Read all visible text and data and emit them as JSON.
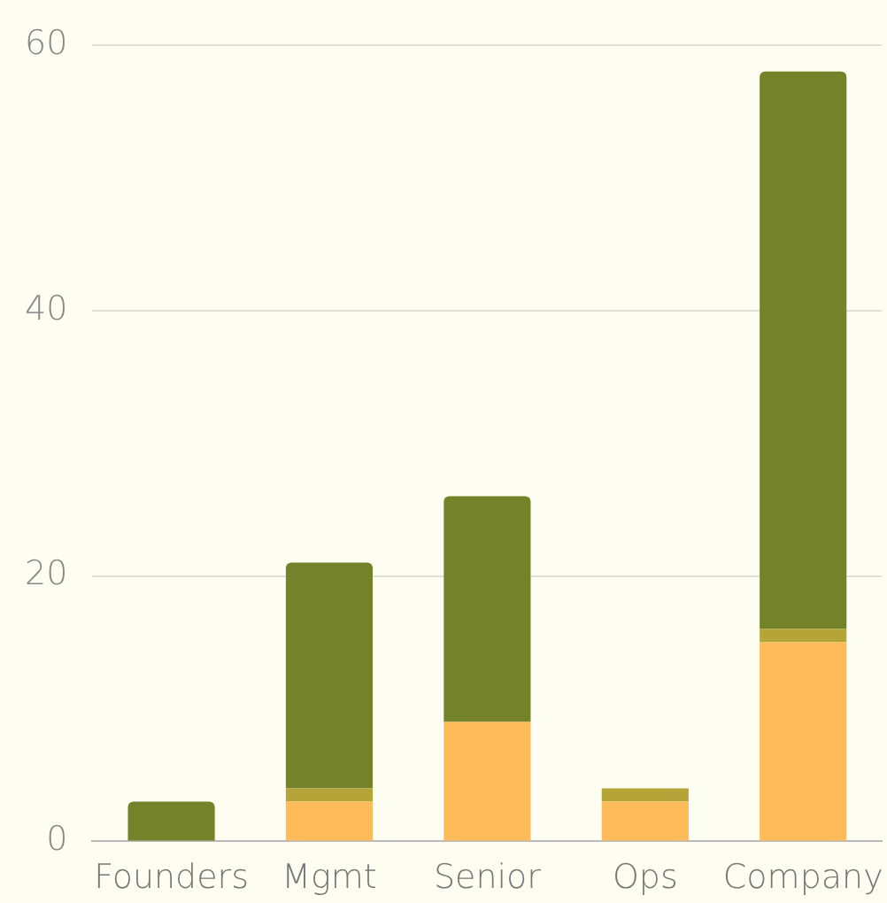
{
  "chart_data": {
    "type": "bar",
    "stacked": true,
    "categories": [
      "Founders",
      "Mgmt",
      "Senior",
      "Ops",
      "Company"
    ],
    "series": [
      {
        "color": "#fdbb59",
        "values": [
          0,
          3,
          9,
          3,
          15
        ]
      },
      {
        "color": "#b5a437",
        "values": [
          0,
          1,
          0,
          1,
          1
        ]
      },
      {
        "color": "#74822a",
        "values": [
          3,
          17,
          17,
          0,
          42
        ]
      }
    ],
    "ylim": [
      0,
      60
    ],
    "yticks": [
      0,
      20,
      40,
      60
    ],
    "grid": "y",
    "legend": false
  }
}
